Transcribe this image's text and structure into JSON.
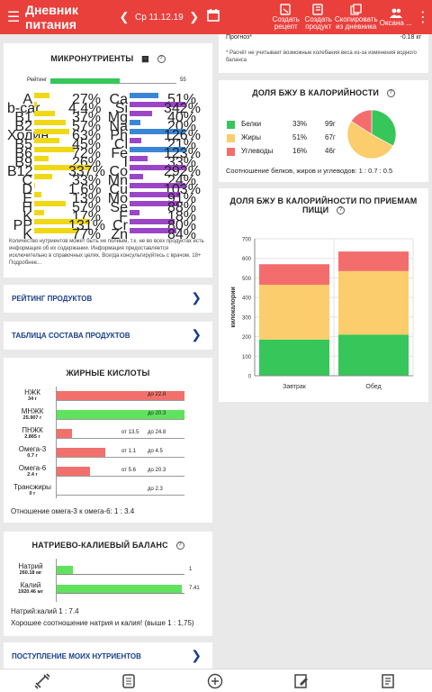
{
  "topbar": {
    "title": "Дневник питания",
    "date": "Ср 11.12.19",
    "actions": [
      {
        "icon": "create-recipe-icon",
        "label1": "Создать",
        "label2": "рецепт"
      },
      {
        "icon": "create-product-icon",
        "label1": "Создать",
        "label2": "продукт"
      },
      {
        "icon": "copy-diary-icon",
        "label1": "Скопировать",
        "label2": "из дневника"
      }
    ],
    "user": "Оксана ..."
  },
  "micronutrients": {
    "title": "МИКРОНУТРИЕНТЫ",
    "rating_label": "Рейтинг",
    "rating_value": "55",
    "rating_fraction": 0.55,
    "left": [
      {
        "name": "A",
        "pct": "27%",
        "v": 27,
        "color": "#f0d816"
      },
      {
        "name": "b-car",
        "pct": "4.4%",
        "v": 4.4,
        "color": "#f0d816"
      },
      {
        "name": "B1",
        "pct": "37%",
        "v": 37,
        "color": "#f0d816"
      },
      {
        "name": "B2",
        "pct": "57%",
        "v": 57,
        "color": "#f0d816"
      },
      {
        "name": "Холин",
        "pct": "63%",
        "v": 63,
        "color": "#f0d816"
      },
      {
        "name": "B5",
        "pct": "45%",
        "v": 45,
        "color": "#f0d816"
      },
      {
        "name": "B6",
        "pct": "72%",
        "v": 72,
        "color": "#f0d816"
      },
      {
        "name": "B9",
        "pct": "26%",
        "v": 26,
        "color": "#f0d816"
      },
      {
        "name": "B12",
        "pct": "337%",
        "v": 337,
        "color": "#f0d816"
      },
      {
        "name": "C",
        "pct": "33%",
        "v": 33,
        "color": "#f0d816"
      },
      {
        "name": "D",
        "pct": "1.6%",
        "v": 1.6,
        "color": "#f0d816"
      },
      {
        "name": "E",
        "pct": "13%",
        "v": 13,
        "color": "#f0d816"
      },
      {
        "name": "H",
        "pct": "57%",
        "v": 57,
        "color": "#f0d816"
      },
      {
        "name": "K",
        "pct": "17%",
        "v": 17,
        "color": "#f0d816"
      },
      {
        "name": "PP",
        "pct": "131%",
        "v": 131,
        "color": "#f0d816"
      }
    ],
    "right": [
      {
        "name": "Ca",
        "pct": "51%",
        "v": 51,
        "color": "#3a86d6"
      },
      {
        "name": "Si",
        "pct": "342%",
        "v": 342,
        "color": "#9b46c6"
      },
      {
        "name": "Mg",
        "pct": "40%",
        "v": 40,
        "color": "#9b46c6"
      },
      {
        "name": "Na",
        "pct": "20%",
        "v": 20,
        "color": "#3a86d6"
      },
      {
        "name": "Ph",
        "pct": "126%",
        "v": 126,
        "color": "#3a86d6"
      },
      {
        "name": "Cl",
        "pct": "21%",
        "v": 21,
        "color": "#9b46c6"
      },
      {
        "name": "Fe",
        "pct": "123%",
        "v": 123,
        "color": "#3a86d6"
      },
      {
        "name": "I",
        "pct": "33%",
        "v": 33,
        "color": "#9b46c6"
      },
      {
        "name": "Co",
        "pct": "292%",
        "v": 292,
        "color": "#9b46c6"
      },
      {
        "name": "Mn",
        "pct": "24%",
        "v": 24,
        "color": "#9b46c6"
      },
      {
        "name": "Cu",
        "pct": "103%",
        "v": 103,
        "color": "#9b46c6"
      },
      {
        "name": "Mo",
        "pct": "91%",
        "v": 91,
        "color": "#9b46c6"
      },
      {
        "name": "Se",
        "pct": "88%",
        "v": 88,
        "color": "#9b46c6"
      },
      {
        "name": "F",
        "pct": "18%",
        "v": 18,
        "color": "#9b46c6"
      },
      {
        "name": "Cr",
        "pct": "80%",
        "v": 80,
        "color": "#9b46c6"
      },
      {
        "name": "Zn",
        "pct": "84%",
        "v": 84,
        "color": "#9b46c6"
      }
    ],
    "k_row": {
      "name": "K",
      "pct": "77%",
      "v": 77,
      "color": "#f0d816"
    },
    "note": "Количество нутриентов может быть не полным, т.к. не во всех продуктах есть информация об их содержании. Информация предоставляется исключительно в справочных целях. Всегда консультируйтесь с врачом. 18+ Подробнее..."
  },
  "links": {
    "rating": "РЕЙТИНГ ПРОДУКТОВ",
    "table": "ТАБЛИЦА СОСТАВА ПРОДУКТОВ",
    "mine": "ПОСТУПЛЕНИЕ МОИХ НУТРИЕНТОВ"
  },
  "fatty": {
    "title": "ЖИРНЫЕ КИСЛОТЫ",
    "rows": [
      {
        "name": "НЖК",
        "sub": "34 г",
        "from": "",
        "to": "до 22.8",
        "fill": 1.0,
        "color": "#f2706c"
      },
      {
        "name": "МНЖК",
        "sub": "25.907 г",
        "from": "",
        "to": "до 20.3",
        "fill": 1.0,
        "color": "#5fe35f"
      },
      {
        "name": "ПНЖК",
        "sub": "2.865 г",
        "from": "от 13.5",
        "to": "до 24.8",
        "fill": 0.12,
        "color": "#f2706c"
      },
      {
        "name": "Омега-3",
        "sub": "0.7 г",
        "from": "от 1.1",
        "to": "до 4.5",
        "fill": 0.38,
        "color": "#f2706c"
      },
      {
        "name": "Омега-6",
        "sub": "2.4 г",
        "from": "от 5.6",
        "to": "до 20.3",
        "fill": 0.26,
        "color": "#f2706c"
      },
      {
        "name": "Трансжиры",
        "sub": "0 г",
        "from": "",
        "to": "до 2.3",
        "fill": 0,
        "color": "#f2706c"
      }
    ],
    "ratio": "Отношение омега-3 к омега-6: 1 : 3.4"
  },
  "sodium": {
    "title": "НАТРИЕВО-КАЛИЕВЫЙ БАЛАНС",
    "rows": [
      {
        "name": "Натрий",
        "sub": "260.18 мг",
        "val": "1",
        "fill": 0.13
      },
      {
        "name": "Калий",
        "sub": "1920.46 мг",
        "val": "7.41",
        "fill": 0.98
      }
    ],
    "ratio": "Натрий:калий 1 : 7.4",
    "comment": "Хорошее соотношение натрия и калия! (выше 1 : 1,75)"
  },
  "forecast": {
    "label": "Прогноз*",
    "value": "-0.18 кг",
    "note": "* Расчёт не учитывает возможные колебания веса из-за изменения водного баланса"
  },
  "bju": {
    "title": "ДОЛЯ БЖУ В КАЛОРИЙНОСТИ",
    "rows": [
      {
        "name": "Белки",
        "pct": "33%",
        "grams": "99г",
        "color": "#37c65a"
      },
      {
        "name": "Жиры",
        "pct": "51%",
        "grams": "67г",
        "color": "#fbcd6c"
      },
      {
        "name": "Углеводы",
        "pct": "16%",
        "grams": "46г",
        "color": "#f46d6d"
      }
    ],
    "ratio": "Соотношение белков, жиров и углеводов: 1 : 0.7 : 0.5"
  },
  "chart_data": {
    "type": "bar",
    "title": "ДОЛЯ БЖУ В КАЛОРИЙНОСТИ ПО ПРИЕМАМ ПИЩИ",
    "categories": [
      "Завтрак",
      "Обед"
    ],
    "ylabel": "килокалории",
    "ylim": [
      0,
      700
    ],
    "yticks": [
      "0",
      "100",
      "200",
      "300",
      "400",
      "500",
      "600",
      "700"
    ],
    "stacked": true,
    "series": [
      {
        "values": [
          185,
          210
        ],
        "color": "#37c65a"
      },
      {
        "values": [
          280,
          325
        ],
        "color": "#fbcd6c"
      },
      {
        "values": [
          105,
          100
        ],
        "color": "#f46d6d"
      }
    ],
    "grid": true
  },
  "bottomnav": [
    "dumbbell-icon",
    "food-icon",
    "add-icon",
    "diary-edit-icon",
    "report-icon"
  ]
}
